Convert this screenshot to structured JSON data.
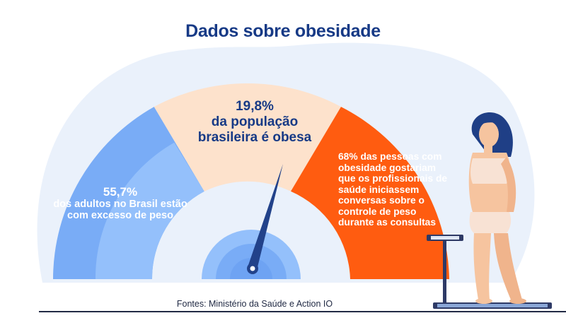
{
  "title": "Dados sobre obesidade",
  "left": {
    "percent": "55,7%",
    "text": "dos adultos no Brasil estão com excesso de peso"
  },
  "middle": {
    "percent": "19,8%",
    "line1": "da população",
    "line2": "brasileira é obesa"
  },
  "right": {
    "text": "68% das pessoas com obesidade gostariam que os profissionais de saúde iniciassem conversas sobre o controle de peso durante as consultas"
  },
  "source": "Fontes: Ministério da Saúde e Action IO",
  "colors": {
    "background_blob": "#eaf1fb",
    "left_outer": "#79acf6",
    "left_inner": "#94c0fb",
    "middle": "#fde2cc",
    "right": "#ff5c10",
    "needle": "#22428a",
    "title": "#173a86"
  },
  "icons": {
    "gauge_needle": "gauge-needle-icon",
    "person": "woman-on-scale-illustration",
    "scale": "bathroom-scale-icon"
  }
}
